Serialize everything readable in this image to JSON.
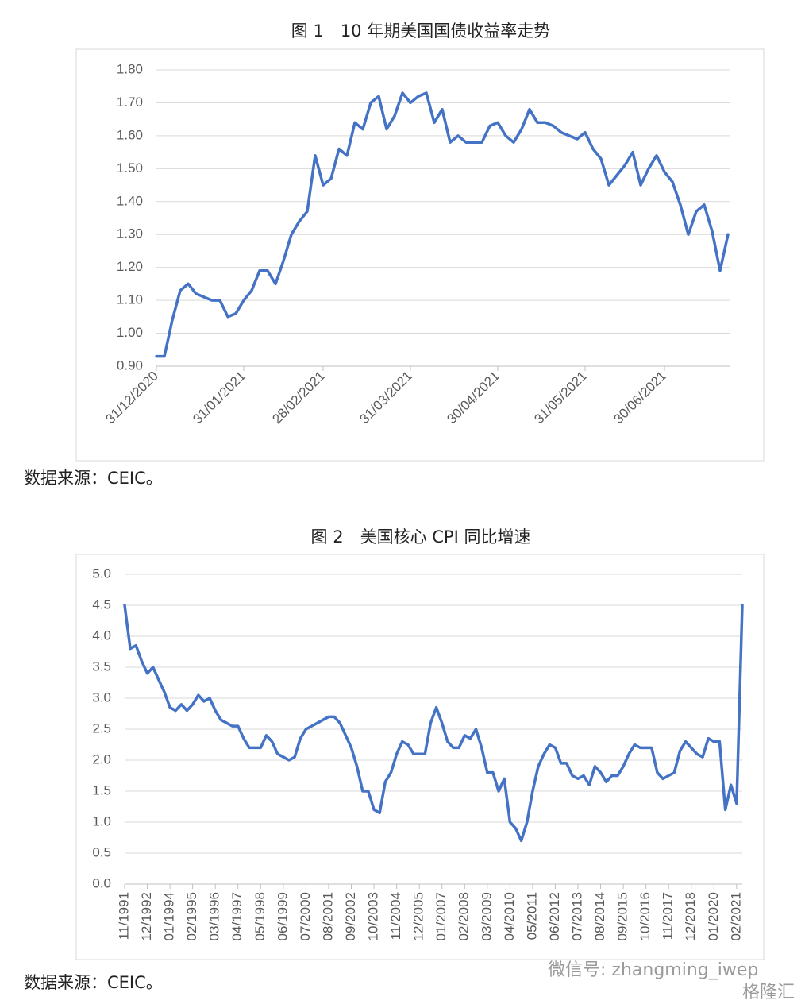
{
  "chart_data": [
    {
      "type": "line",
      "title": "图 1　10 年期美国国债收益率走势",
      "categories": [
        "31/12/2020",
        null,
        null,
        null,
        null,
        null,
        null,
        null,
        null,
        null,
        null,
        "31/01/2021",
        null,
        null,
        null,
        null,
        null,
        null,
        null,
        null,
        null,
        "28/02/2021",
        null,
        null,
        null,
        null,
        null,
        null,
        null,
        null,
        null,
        null,
        "31/03/2021",
        null,
        null,
        null,
        null,
        null,
        null,
        null,
        null,
        null,
        null,
        "30/04/2021",
        null,
        null,
        null,
        null,
        null,
        null,
        null,
        null,
        null,
        null,
        "31/05/2021",
        null,
        null,
        null,
        null,
        null,
        null,
        null,
        null,
        null,
        "30/06/2021",
        null,
        null,
        null,
        null,
        null,
        null,
        null,
        null
      ],
      "values": [
        0.93,
        0.93,
        1.04,
        1.13,
        1.15,
        1.12,
        1.11,
        1.1,
        1.1,
        1.05,
        1.06,
        1.1,
        1.13,
        1.19,
        1.19,
        1.15,
        1.22,
        1.3,
        1.34,
        1.37,
        1.54,
        1.45,
        1.47,
        1.56,
        1.54,
        1.64,
        1.62,
        1.7,
        1.72,
        1.62,
        1.66,
        1.73,
        1.7,
        1.72,
        1.73,
        1.64,
        1.68,
        1.58,
        1.6,
        1.58,
        1.58,
        1.58,
        1.63,
        1.64,
        1.6,
        1.58,
        1.62,
        1.68,
        1.64,
        1.64,
        1.63,
        1.61,
        1.6,
        1.59,
        1.61,
        1.56,
        1.53,
        1.45,
        1.48,
        1.51,
        1.55,
        1.45,
        1.5,
        1.54,
        1.49,
        1.46,
        1.39,
        1.3,
        1.37,
        1.39,
        1.31,
        1.19,
        1.3
      ],
      "color": "#4472c4",
      "ylim": [
        0.9,
        1.8
      ],
      "yticks": [
        {
          "value": 0.9,
          "label": "0.90"
        },
        {
          "value": 1.0,
          "label": "1.00"
        },
        {
          "value": 1.1,
          "label": "1.10"
        },
        {
          "value": 1.2,
          "label": "1.20"
        },
        {
          "value": 1.3,
          "label": "1.30"
        },
        {
          "value": 1.4,
          "label": "1.40"
        },
        {
          "value": 1.5,
          "label": "1.50"
        },
        {
          "value": 1.6,
          "label": "1.60"
        },
        {
          "value": 1.7,
          "label": "1.70"
        },
        {
          "value": 1.8,
          "label": "1.80"
        }
      ],
      "grid": true,
      "source": "数据来源：CEIC。"
    },
    {
      "type": "line",
      "title": "图 2　美国核心 CPI 同比增速",
      "categories": [
        "11/1991",
        null,
        null,
        null,
        "12/1992",
        null,
        null,
        null,
        "01/1994",
        null,
        null,
        null,
        "02/1995",
        null,
        null,
        null,
        "03/1996",
        null,
        null,
        null,
        "04/1997",
        null,
        null,
        null,
        "05/1998",
        null,
        null,
        null,
        "06/1999",
        null,
        null,
        null,
        "07/2000",
        null,
        null,
        null,
        "08/2001",
        null,
        null,
        null,
        "09/2002",
        null,
        null,
        null,
        "10/2003",
        null,
        null,
        null,
        "11/2004",
        null,
        null,
        null,
        "12/2005",
        null,
        null,
        null,
        "01/2007",
        null,
        null,
        null,
        "02/2008",
        null,
        null,
        null,
        "03/2009",
        null,
        null,
        null,
        "04/2010",
        null,
        null,
        null,
        "05/2011",
        null,
        null,
        null,
        "06/2012",
        null,
        null,
        null,
        "07/2013",
        null,
        null,
        null,
        "08/2014",
        null,
        null,
        null,
        "09/2015",
        null,
        null,
        null,
        "10/2016",
        null,
        null,
        null,
        "11/2017",
        null,
        null,
        null,
        "12/2018",
        null,
        null,
        null,
        "01/2020",
        null,
        null,
        null,
        "02/2021",
        null
      ],
      "values": [
        4.5,
        3.8,
        3.85,
        3.6,
        3.4,
        3.5,
        3.3,
        3.1,
        2.85,
        2.8,
        2.9,
        2.8,
        2.9,
        3.05,
        2.95,
        3.0,
        2.8,
        2.65,
        2.6,
        2.55,
        2.55,
        2.35,
        2.2,
        2.2,
        2.2,
        2.4,
        2.3,
        2.1,
        2.05,
        2.0,
        2.05,
        2.35,
        2.5,
        2.55,
        2.6,
        2.65,
        2.7,
        2.7,
        2.6,
        2.4,
        2.2,
        1.9,
        1.5,
        1.5,
        1.2,
        1.15,
        1.65,
        1.8,
        2.1,
        2.3,
        2.25,
        2.1,
        2.1,
        2.1,
        2.6,
        2.85,
        2.6,
        2.3,
        2.2,
        2.2,
        2.4,
        2.35,
        2.5,
        2.2,
        1.8,
        1.8,
        1.5,
        1.7,
        1.0,
        0.9,
        0.7,
        1.0,
        1.5,
        1.9,
        2.1,
        2.25,
        2.2,
        1.95,
        1.95,
        1.75,
        1.7,
        1.75,
        1.6,
        1.9,
        1.8,
        1.65,
        1.75,
        1.75,
        1.9,
        2.1,
        2.25,
        2.2,
        2.2,
        2.2,
        1.8,
        1.7,
        1.75,
        1.8,
        2.15,
        2.3,
        2.2,
        2.1,
        2.05,
        2.35,
        2.3,
        2.3,
        1.2,
        1.6,
        1.3,
        4.5
      ],
      "color": "#4472c4",
      "ylim": [
        0,
        5
      ],
      "yticks": [
        {
          "value": 0,
          "label": "0.0"
        },
        0.5,
        {
          "value": 1,
          "label": "1.0"
        },
        1.5,
        {
          "value": 2,
          "label": "2.0"
        },
        2.5,
        {
          "value": 3,
          "label": "3.0"
        },
        3.5,
        {
          "value": 4,
          "label": "4.0"
        },
        4.5,
        {
          "value": 5,
          "label": "5.0"
        }
      ],
      "grid": true,
      "source": "数据来源：CEIC。"
    }
  ],
  "watermark": {
    "account": "微信号: zhangming_iwep",
    "brand": "格隆汇"
  }
}
